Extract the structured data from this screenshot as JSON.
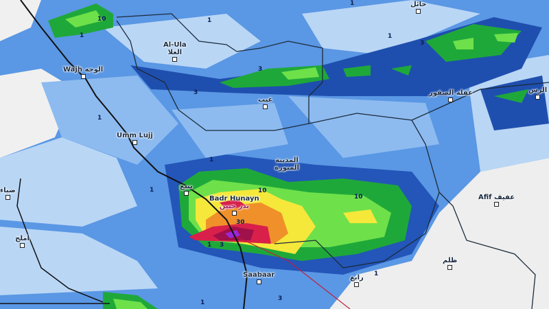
{
  "map": {
    "type": "precipitation accumulation map",
    "colors": {
      "dry": "#f0f0f0",
      "very_light": "#b9d6f5",
      "light": "#7fb2ee",
      "moderate": "#3f7fdc",
      "heavy_blue": "#1f4fae",
      "green": "#1fa83a",
      "light_green": "#6ee04a",
      "yellow": "#f5e83a",
      "orange": "#f0902a",
      "red": "#d8204a",
      "magenta": "#b0107a",
      "purple": "#9a28d8",
      "border": "#1c2a3a",
      "route": "#c0203a"
    },
    "places": [
      {
        "name": "حائل"
      },
      {
        "name": "Al-Ula",
        "name_ar": "العلا"
      },
      {
        "name": "Wajh",
        "name_ar": "الوجه"
      },
      {
        "name": "عيب"
      },
      {
        "name": "عقلة الصقور"
      },
      {
        "name": "الرس"
      },
      {
        "name": "Umm Lujj"
      },
      {
        "name": "المدينة المنورة"
      },
      {
        "name": "ينبع"
      },
      {
        "name": "Badr Hunayn",
        "name_ar": "بدر حنين"
      },
      {
        "name": "ضباء"
      },
      {
        "name": "املج"
      },
      {
        "name": "Afif",
        "name_ar": "عفيف"
      },
      {
        "name": "ظلم"
      },
      {
        "name": "Saabaar"
      },
      {
        "name": "رابغ"
      }
    ],
    "contour_labels": [
      "1",
      "10",
      "1",
      "3",
      "3",
      "1",
      "3",
      "1",
      "1",
      "1",
      "1",
      "10",
      "10",
      "30",
      "1",
      "3",
      "1",
      "3",
      "1"
    ]
  }
}
